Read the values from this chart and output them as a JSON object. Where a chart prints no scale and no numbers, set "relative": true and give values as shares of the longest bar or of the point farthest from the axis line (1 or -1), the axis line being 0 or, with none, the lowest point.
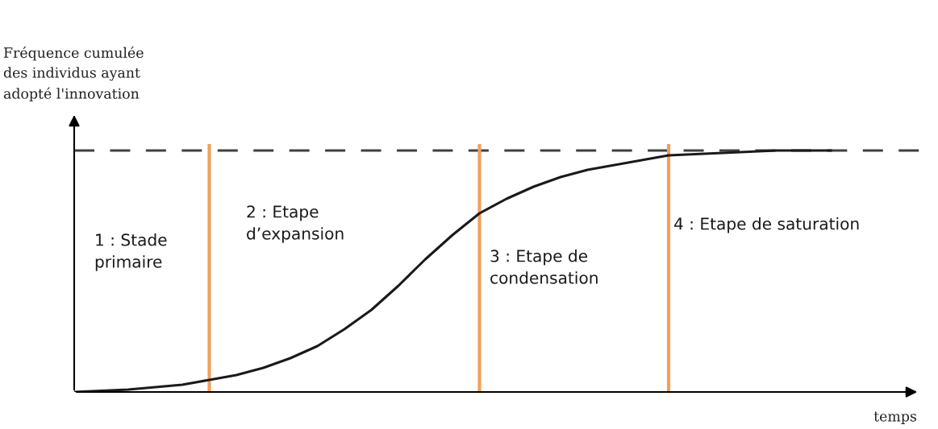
{
  "chart_data": {
    "type": "line",
    "relative": true,
    "ylabel": "Fréquence cumulée\ndes individus ayant\nadopté l'innovation",
    "xlabel": "temps",
    "categories": [
      null,
      null,
      null,
      null,
      null,
      null,
      null,
      null,
      null,
      null,
      null,
      null,
      null,
      null,
      null,
      null,
      null,
      null,
      null,
      null,
      null,
      null,
      null,
      null,
      null,
      null,
      null,
      null,
      null
    ],
    "series": [
      {
        "color": "#1a1a1a",
        "values": [
          0,
          0.005,
          0.01,
          0.02,
          0.03,
          0.05,
          0.07,
          0.1,
          0.14,
          0.19,
          0.26,
          0.34,
          0.44,
          0.55,
          0.65,
          0.74,
          0.8,
          0.85,
          0.89,
          0.92,
          0.94,
          0.96,
          0.98,
          0.985,
          0.99,
          0.995,
          1.0,
          1.0,
          1.0
        ]
      }
    ],
    "ref_lines": [
      {
        "axis": "y",
        "value": 1.0,
        "color": "#404040",
        "line_style": "dashed"
      }
    ],
    "annotations": [
      "1 : Stade\nprimaire",
      "2 : Etape\nd’expansion",
      "3 : Etape de\ncondensation",
      "4 : Etape de saturation"
    ],
    "grid": "x",
    "legend": false,
    "marker": "none",
    "line_style": "solid"
  }
}
